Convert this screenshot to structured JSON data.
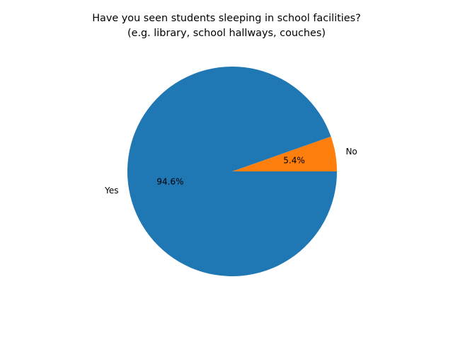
{
  "chart_data": {
    "type": "pie",
    "title": "Have you seen students sleeping in school facilities?\n(e.g. library, school hallways, couches)",
    "title_lines": [
      "Have you seen students sleeping in school facilities?",
      "(e.g. library, school hallways, couches)"
    ],
    "categories": [
      "No",
      "Yes"
    ],
    "values": [
      5.4,
      94.6
    ],
    "percent_labels": [
      "5.4%",
      "94.6%"
    ],
    "colors": [
      "#ff7f0e",
      "#1f77b4"
    ],
    "start_angle_deg": 0,
    "direction": "counterclockwise",
    "legend": "none"
  }
}
